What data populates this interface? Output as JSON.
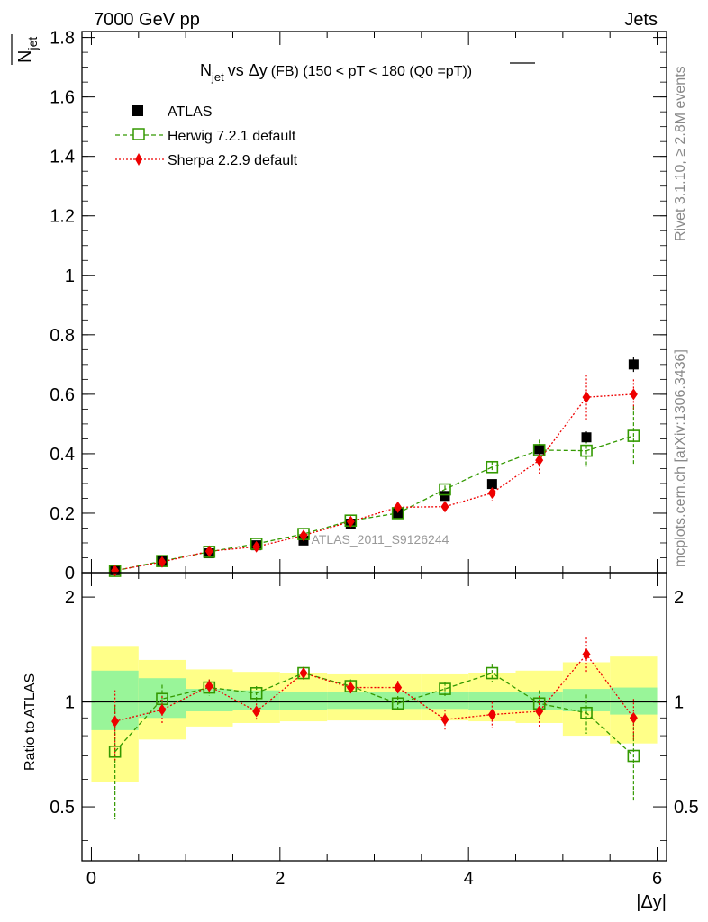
{
  "header": {
    "left": "7000 GeV pp",
    "right": "Jets"
  },
  "side_labels": {
    "upper": "Rivet 3.1.10, ≥ 2.8M events",
    "lower": "mcplots.cern.ch [arXiv:1306.3436]"
  },
  "watermark": "ATLAS_2011_S9126244",
  "chart_data": [
    {
      "type": "scatter",
      "title_parts": {
        "main": "N",
        "main_sub": "jet",
        "vs": "vs Δy",
        "cond": "(FB) (150 < pT < 180 (Q0 =",
        "q0": "pT",
        "close": "))"
      },
      "ylabel": "N",
      "ylabel_sub": "jet",
      "xlim": [
        -0.1,
        6.1
      ],
      "ylim": [
        0,
        1.82
      ],
      "yticks": [
        0,
        0.2,
        0.4,
        0.6,
        0.8,
        1,
        1.2,
        1.4,
        1.6,
        1.8
      ],
      "ytick_labels": [
        "0",
        "0.2",
        "0.4",
        "0.6",
        "0.8",
        "1",
        "1.2",
        "1.4",
        "1.6",
        "1.8"
      ],
      "legend_position": "top-left",
      "x": [
        0.25,
        0.75,
        1.25,
        1.75,
        2.25,
        2.75,
        3.25,
        3.75,
        4.25,
        4.75,
        5.25,
        5.75
      ],
      "series": [
        {
          "name": "ATLAS",
          "color": "#000000",
          "marker": "square-filled",
          "values": [
            0.008,
            0.038,
            0.065,
            0.092,
            0.108,
            0.165,
            0.2,
            0.258,
            0.298,
            0.415,
            0.455,
            0.7
          ],
          "errors": [
            0.003,
            0.004,
            0.005,
            0.006,
            0.007,
            0.008,
            0.009,
            0.012,
            0.014,
            0.018,
            0.02,
            0.025
          ]
        },
        {
          "name": "Herwig 7.2.1 default",
          "color": "#339900",
          "marker": "square-open",
          "line": "dashed",
          "values": [
            0.006,
            0.039,
            0.07,
            0.097,
            0.13,
            0.175,
            0.2,
            0.28,
            0.355,
            0.412,
            0.41,
            0.46
          ],
          "errors": [
            0.002,
            0.003,
            0.004,
            0.005,
            0.006,
            0.007,
            0.009,
            0.013,
            0.02,
            0.035,
            0.055,
            0.1
          ]
        },
        {
          "name": "Sherpa 2.2.9 default",
          "color": "#ee0000",
          "marker": "diamond",
          "line": "dotted",
          "values": [
            0.007,
            0.036,
            0.072,
            0.087,
            0.125,
            0.172,
            0.22,
            0.222,
            0.268,
            0.378,
            0.59,
            0.6
          ],
          "errors": [
            0.002,
            0.003,
            0.004,
            0.005,
            0.006,
            0.008,
            0.01,
            0.015,
            0.025,
            0.045,
            0.075,
            0.05
          ]
        }
      ]
    },
    {
      "type": "scatter",
      "ylabel": "Ratio to ATLAS",
      "xlabel": "|Δy|",
      "xlim": [
        -0.1,
        6.1
      ],
      "ylim": [
        0.35,
        2.35
      ],
      "xticks": [
        0,
        2,
        4,
        6
      ],
      "xtick_labels": [
        "0",
        "2",
        "4",
        "6"
      ],
      "yticks": [
        0.5,
        1,
        2
      ],
      "ytick_labels": [
        "0.5",
        "1",
        "2"
      ],
      "reference_line": 1,
      "bands": {
        "edges": [
          0,
          0.5,
          1,
          1.5,
          2,
          2.5,
          3,
          3.5,
          4,
          4.5,
          5,
          5.5,
          6
        ],
        "green_low": [
          0.83,
          0.9,
          0.94,
          0.95,
          0.95,
          0.955,
          0.955,
          0.955,
          0.95,
          0.95,
          0.94,
          0.92
        ],
        "green_high": [
          1.23,
          1.17,
          1.09,
          1.08,
          1.07,
          1.065,
          1.065,
          1.065,
          1.07,
          1.07,
          1.09,
          1.1
        ],
        "yellow_low": [
          0.59,
          0.78,
          0.85,
          0.87,
          0.88,
          0.885,
          0.885,
          0.885,
          0.88,
          0.87,
          0.8,
          0.76
        ],
        "yellow_high": [
          1.44,
          1.32,
          1.24,
          1.22,
          1.21,
          1.2,
          1.2,
          1.2,
          1.21,
          1.23,
          1.3,
          1.35
        ]
      },
      "x": [
        0.25,
        0.75,
        1.25,
        1.75,
        2.25,
        2.75,
        3.25,
        3.75,
        4.25,
        4.75,
        5.25,
        5.75
      ],
      "series": [
        {
          "name": "Herwig 7.2.1 default",
          "color": "#339900",
          "marker": "square-open",
          "line": "dashed",
          "values": [
            0.72,
            1.02,
            1.1,
            1.06,
            1.21,
            1.11,
            0.99,
            1.09,
            1.21,
            0.99,
            0.93,
            0.7
          ],
          "errors": [
            0.26,
            0.1,
            0.06,
            0.05,
            0.05,
            0.05,
            0.05,
            0.05,
            0.07,
            0.09,
            0.12,
            0.18
          ]
        },
        {
          "name": "Sherpa 2.2.9 default",
          "color": "#ee0000",
          "marker": "diamond",
          "line": "dotted",
          "values": [
            0.88,
            0.95,
            1.11,
            0.94,
            1.21,
            1.1,
            1.1,
            0.89,
            0.92,
            0.94,
            1.37,
            0.9
          ],
          "errors": [
            0.2,
            0.09,
            0.05,
            0.05,
            0.05,
            0.05,
            0.05,
            0.06,
            0.08,
            0.1,
            0.16,
            0.12
          ]
        }
      ]
    }
  ]
}
